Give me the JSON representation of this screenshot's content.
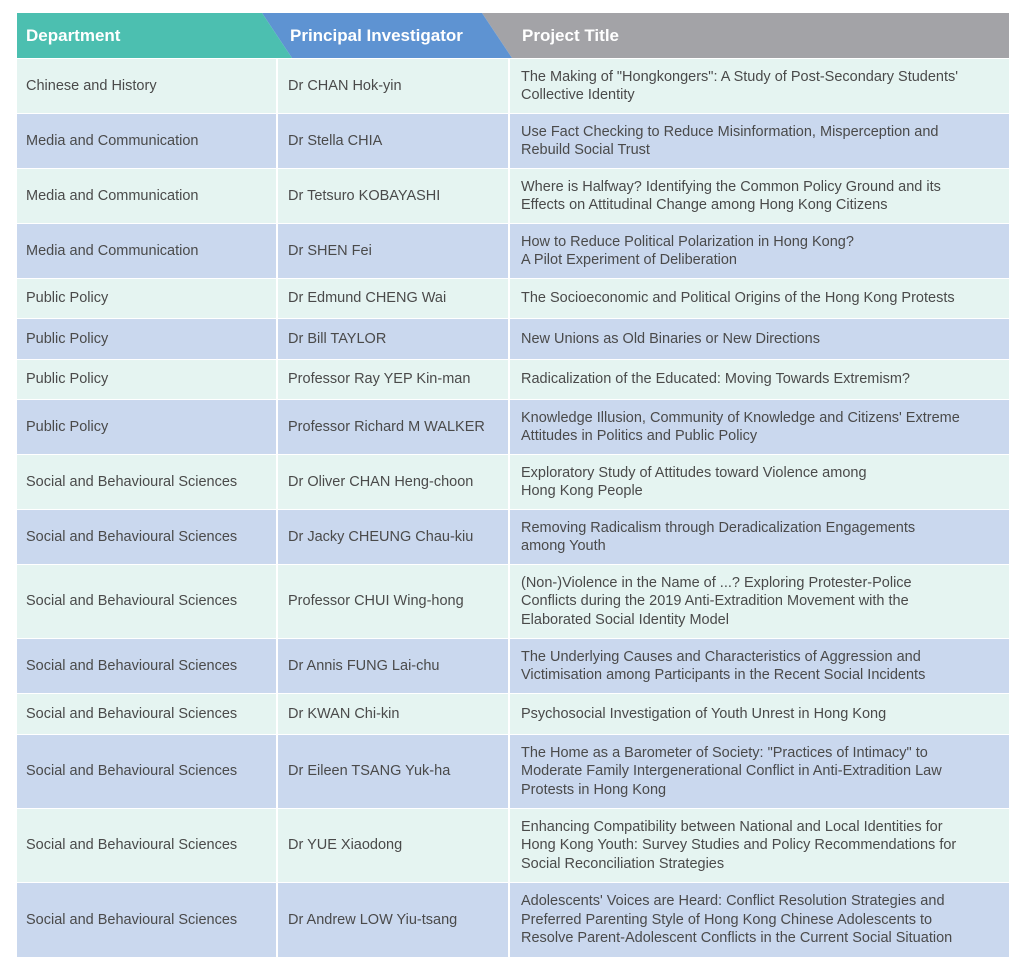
{
  "header": {
    "department": "Department",
    "investigator": "Principal Investigator",
    "title": "Project Title"
  },
  "colors": {
    "department_header": "#4cbfb0",
    "investigator_header": "#5e93d2",
    "title_header": "#a3a3a7",
    "row_light": "#e5f4f1",
    "row_blue": "#cad8ee"
  },
  "rows": [
    {
      "department": "Chinese and History",
      "investigator": "Dr CHAN Hok-yin",
      "title": [
        "The Making of \"Hongkongers\": A Study of Post-Secondary Students'",
        "Collective Identity"
      ]
    },
    {
      "department": "Media and Communication",
      "investigator": "Dr Stella CHIA",
      "title": [
        "Use Fact Checking to Reduce Misinformation, Misperception and",
        "Rebuild Social Trust"
      ]
    },
    {
      "department": "Media and Communication",
      "investigator": "Dr Tetsuro KOBAYASHI",
      "title": [
        "Where is Halfway? Identifying the Common Policy Ground and its",
        "Effects on Attitudinal Change among Hong Kong Citizens"
      ]
    },
    {
      "department": "Media and Communication",
      "investigator": "Dr SHEN Fei",
      "title": [
        "How to Reduce Political Polarization in Hong Kong?",
        "A Pilot Experiment of Deliberation"
      ]
    },
    {
      "department": "Public Policy",
      "investigator": "Dr Edmund CHENG Wai",
      "title": [
        "The Socioeconomic and Political Origins of the Hong Kong Protests"
      ]
    },
    {
      "department": "Public Policy",
      "investigator": "Dr Bill TAYLOR",
      "title": [
        "New Unions as Old Binaries or New Directions"
      ]
    },
    {
      "department": "Public Policy",
      "investigator": "Professor Ray YEP Kin-man",
      "title": [
        "Radicalization of the Educated: Moving Towards Extremism?"
      ]
    },
    {
      "department": "Public Policy",
      "investigator": "Professor Richard M WALKER",
      "title": [
        "Knowledge Illusion, Community of Knowledge and Citizens' Extreme",
        "Attitudes in Politics and Public Policy"
      ]
    },
    {
      "department": "Social and Behavioural Sciences",
      "investigator": "Dr Oliver CHAN Heng-choon",
      "title": [
        "Exploratory Study of Attitudes toward Violence among",
        "Hong Kong People"
      ]
    },
    {
      "department": "Social and Behavioural Sciences",
      "investigator": "Dr Jacky CHEUNG Chau-kiu",
      "title": [
        "Removing Radicalism through Deradicalization Engagements",
        "among Youth"
      ]
    },
    {
      "department": "Social and Behavioural Sciences",
      "investigator": "Professor CHUI Wing-hong",
      "title": [
        "(Non-)Violence in the Name of ...? Exploring Protester-Police",
        "Conflicts during the 2019 Anti-Extradition Movement with the",
        "Elaborated Social Identity Model"
      ]
    },
    {
      "department": "Social and Behavioural Sciences",
      "investigator": "Dr Annis FUNG Lai-chu",
      "title": [
        "The Underlying Causes and Characteristics of Aggression and",
        "Victimisation among Participants in the Recent Social Incidents"
      ]
    },
    {
      "department": "Social and Behavioural Sciences",
      "investigator": "Dr KWAN Chi-kin",
      "title": [
        "Psychosocial Investigation of Youth Unrest in Hong Kong"
      ]
    },
    {
      "department": "Social and Behavioural Sciences",
      "investigator": "Dr Eileen TSANG Yuk-ha",
      "title": [
        "The Home as a Barometer of Society: \"Practices of Intimacy\" to",
        "Moderate Family Intergenerational Conflict in Anti-Extradition Law",
        "Protests in Hong Kong"
      ]
    },
    {
      "department": "Social and Behavioural Sciences",
      "investigator": "Dr YUE Xiaodong",
      "title": [
        "Enhancing Compatibility between National and Local Identities for",
        "Hong Kong Youth: Survey Studies and Policy Recommendations for",
        "Social Reconciliation Strategies"
      ]
    },
    {
      "department": "Social and Behavioural Sciences",
      "investigator": "Dr Andrew LOW Yiu-tsang",
      "title": [
        "Adolescents' Voices are Heard: Conflict Resolution Strategies and",
        "Preferred Parenting Style of Hong Kong Chinese Adolescents to",
        "Resolve Parent-Adolescent Conflicts in the Current Social Situation"
      ]
    }
  ]
}
